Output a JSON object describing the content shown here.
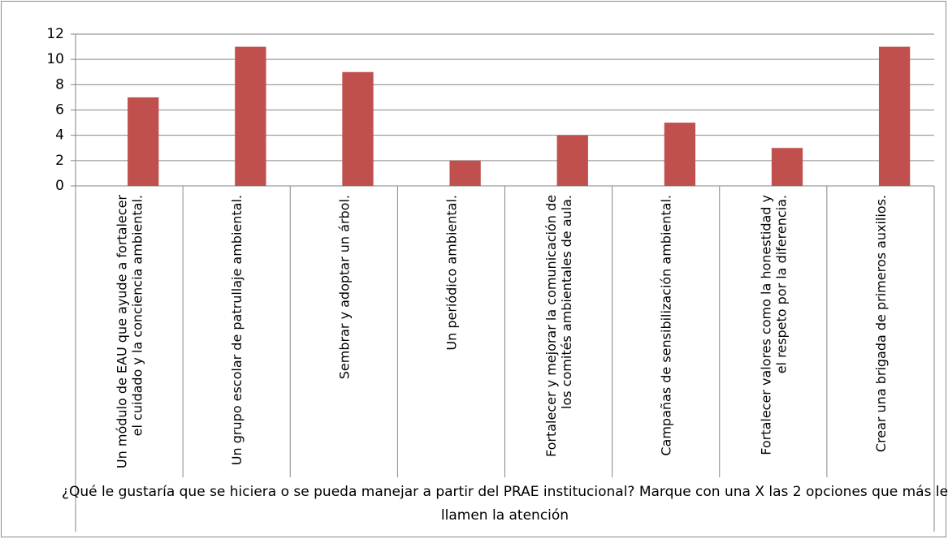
{
  "chart_data": {
    "type": "bar",
    "categories": [
      "Un módulo de EAU que ayude a fortalecer el cuidado y la conciencia ambiental.",
      "Un grupo escolar de patrullaje ambiental.",
      "Sembrar y adoptar un árbol.",
      "Un periódico ambiental.",
      "Fortalecer y mejorar la comunicación de los comités ambientales de aula.",
      "Campañas de sensibilización ambiental.",
      "Fortalecer valores como la honestidad y el respeto por la diferencia.",
      "Crear una brigada de primeros auxilios."
    ],
    "values": [
      7,
      11,
      9,
      2,
      4,
      5,
      3,
      11
    ],
    "color": "#c0504d",
    "x_label": "¿Qué le gustaría que se hiciera o se pueda manejar a partir del PRAE institucional? Marque con una X las 2 opciones que más le llamen la atención",
    "ylim": [
      0,
      12
    ],
    "yticks": [
      0,
      2,
      4,
      6,
      8,
      10,
      12
    ],
    "grid": true
  }
}
